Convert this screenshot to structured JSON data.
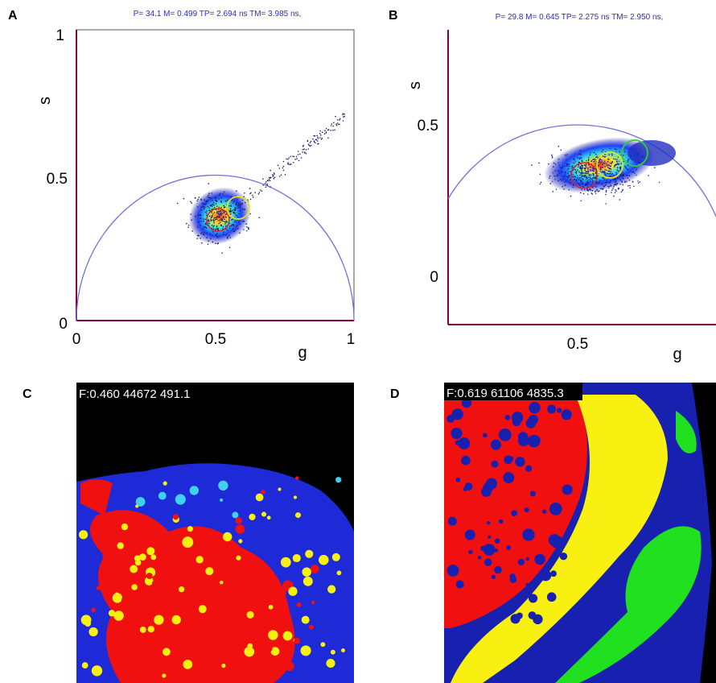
{
  "panels": [
    {
      "label": "A",
      "header": "P=  34.1 M= 0.499 TP= 2.694 ns TM= 3.985 ns,",
      "y_axis_label": "s",
      "x_axis_label": "g",
      "y_ticks": [
        "1",
        "0.5",
        "0"
      ],
      "x_ticks": [
        "0",
        "0.5",
        "1"
      ]
    },
    {
      "label": "B",
      "header": "P=  29.8 M= 0.645 TP= 2.275 ns TM= 2.950 ns,",
      "y_axis_label": "s",
      "x_axis_label": "g",
      "y_ticks": [
        "0.5",
        "0"
      ],
      "x_ticks": [
        "0.5"
      ]
    },
    {
      "label": "C",
      "overlay": "F:0.460 44672  491.1"
    },
    {
      "label": "D",
      "overlay": "F:0.619 61106 4835.3"
    }
  ]
}
